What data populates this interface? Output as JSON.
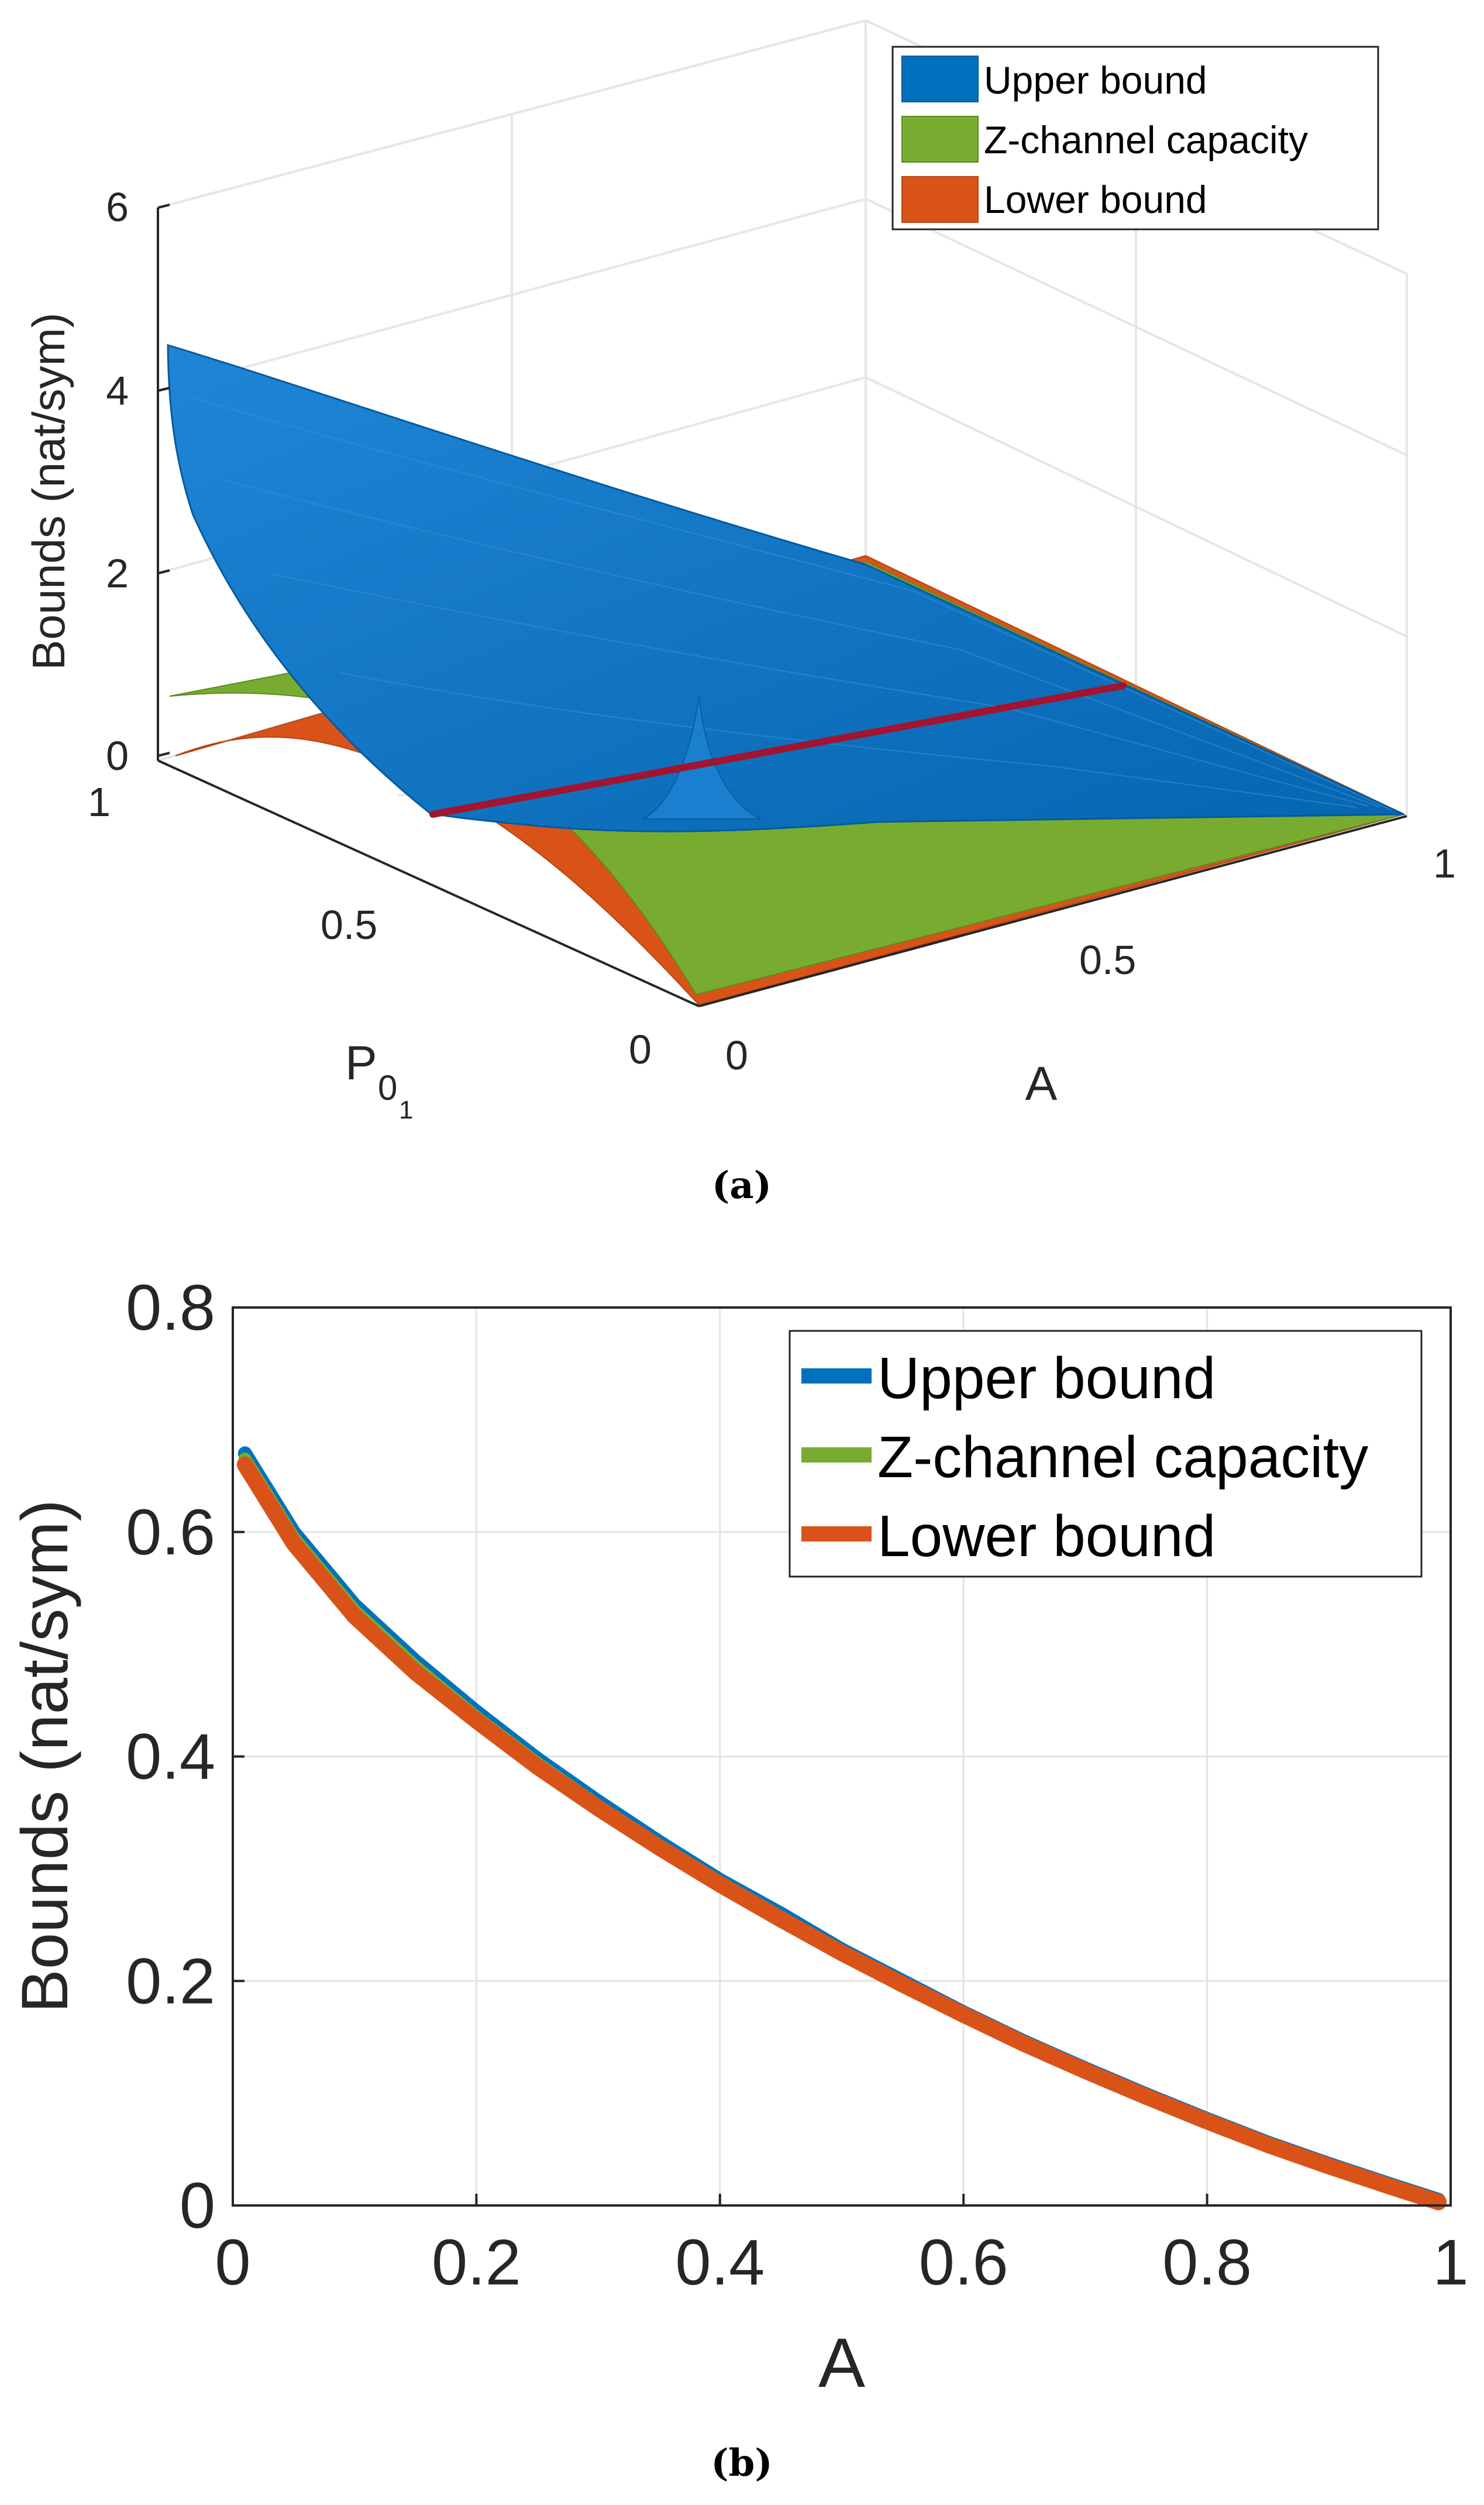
{
  "figure_labels": {
    "a": "(a)",
    "b": "(b)"
  },
  "chart_data": [
    {
      "type": "surface",
      "title": "",
      "zlabel": "Bounds (nat/sym)",
      "xlabel": "A",
      "ylabel_base": "P",
      "ylabel_sub1": "0",
      "ylabel_sub2": "1",
      "zlim": [
        0,
        6
      ],
      "z_ticks": [
        0,
        2,
        4,
        6
      ],
      "x_ticks": [
        0,
        0.5,
        1
      ],
      "y_ticks": [
        0,
        0.5,
        1
      ],
      "legend": [
        "Upper bound",
        "Z-channel capacity",
        "Lower bound"
      ],
      "legend_position": "top-right",
      "grid": true,
      "series": [
        {
          "name": "Upper bound",
          "color": "#0072BD",
          "description_values": {
            "A0_P1": 4.4,
            "A0_P0": 0.7,
            "A1_P1": 0.0,
            "A1_P0": 0.0,
            "peak_A": 0.3,
            "peak_P": 0.5,
            "peak_z": 1.6
          }
        },
        {
          "name": "Z-channel capacity",
          "color": "#77AC30",
          "description_values": {
            "A0_P1": 0.7,
            "A0_P0": 0.69,
            "A1_P1": 0.0,
            "A1_P0": 0.0
          }
        },
        {
          "name": "Lower bound",
          "color": "#D95319",
          "description_values": {
            "A0_P1": 0.0,
            "A0_P0": 0.69,
            "A1_P1": 0.0,
            "A1_P0": 0.0
          }
        }
      ],
      "slice_line": {
        "color": "#A2142F",
        "P01": 0.5,
        "A_range": [
          0,
          1
        ]
      }
    },
    {
      "type": "line",
      "title": "",
      "xlabel": "A",
      "ylabel": "Bounds (nat/sym)",
      "xlim": [
        0,
        1
      ],
      "ylim": [
        0,
        0.8
      ],
      "x_ticks": [
        0,
        0.2,
        0.4,
        0.6,
        0.8,
        1
      ],
      "y_ticks": [
        0,
        0.2,
        0.4,
        0.6,
        0.8
      ],
      "x_tick_labels": [
        "0",
        "0.2",
        "0.4",
        "0.6",
        "0.8",
        "1"
      ],
      "y_tick_labels": [
        "0",
        "0.2",
        "0.4",
        "0.6",
        "0.8"
      ],
      "grid": true,
      "legend_position": "top-right",
      "x": [
        0.01,
        0.05,
        0.1,
        0.15,
        0.2,
        0.25,
        0.3,
        0.35,
        0.4,
        0.45,
        0.5,
        0.55,
        0.6,
        0.65,
        0.7,
        0.75,
        0.8,
        0.85,
        0.9,
        0.95,
        0.99
      ],
      "series": [
        {
          "name": "Upper bound",
          "color": "#0072BD",
          "values": [
            0.67,
            0.6,
            0.535,
            0.485,
            0.44,
            0.398,
            0.36,
            0.324,
            0.29,
            0.26,
            0.228,
            0.2,
            0.172,
            0.146,
            0.122,
            0.099,
            0.077,
            0.056,
            0.037,
            0.019,
            0.005
          ]
        },
        {
          "name": "Z-channel capacity",
          "color": "#77AC30",
          "values": [
            0.665,
            0.595,
            0.53,
            0.48,
            0.435,
            0.394,
            0.356,
            0.321,
            0.288,
            0.257,
            0.226,
            0.198,
            0.171,
            0.145,
            0.121,
            0.098,
            0.076,
            0.055,
            0.036,
            0.018,
            0.004
          ]
        },
        {
          "name": "Lower bound",
          "color": "#D95319",
          "values": [
            0.66,
            0.59,
            0.525,
            0.475,
            0.432,
            0.391,
            0.354,
            0.319,
            0.286,
            0.255,
            0.225,
            0.197,
            0.17,
            0.144,
            0.12,
            0.097,
            0.075,
            0.054,
            0.035,
            0.017,
            0.003
          ]
        }
      ]
    }
  ]
}
